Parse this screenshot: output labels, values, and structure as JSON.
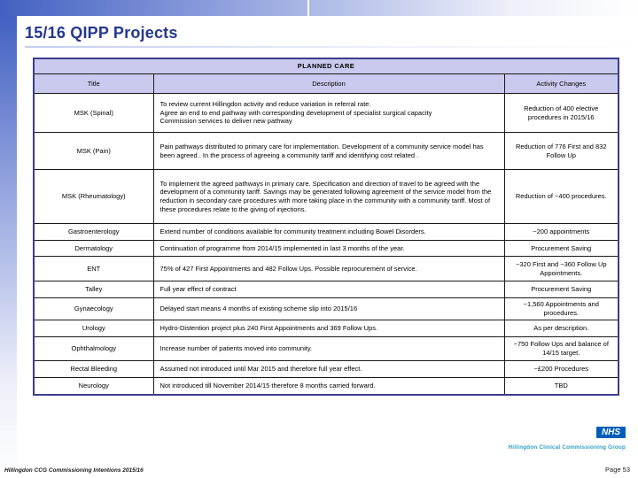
{
  "slide": {
    "title": "15/16 QIPP Projects",
    "footer_left": "Hillingdon CCG Commissioning Intentions 2015/16",
    "page_label": "Page 53",
    "nhs_logo_text": "NHS",
    "nhs_org": "Hillingdon Clinical Commissioning Group"
  },
  "colors": {
    "accent_bar_blue": "#4361c2",
    "title_navy": "#24388e",
    "table_header_lavender": "#c9caee",
    "table_outer_border": "#3c3c8c",
    "nhs_blue": "#005eb8",
    "nhs_org_teal": "#2f9ec4"
  },
  "table": {
    "section_header": "PLANNED CARE",
    "columns": [
      "Title",
      "Description",
      "Activity Changes"
    ],
    "rows": [
      {
        "title": "MSK (Spinal)",
        "description": "To review current Hillingdon activity and reduce variation in referral rate.\nAgree an end to end pathway with corresponding  development of specialist surgical capacity\nCommission services to deliver new pathway",
        "activity": "Reduction of 400 elective procedures  in 2015/16"
      },
      {
        "title": "MSK (Pain)",
        "description": "Pain pathways distributed to primary care for implementation. Development of a community service model has been agreed . In the process of agreeing a community tariff and identifying cost related .",
        "activity": "Reduction of 776 First and 832 Follow Up"
      },
      {
        "title": "MSK (Rheumatology)",
        "description": "To implement the agreed pathways in primary care. Specification and direction of travel to be agreed with the development of a community tariff. Savings may be generated following agreement of the service model from the reduction in secondary care procedures with more taking place in the community with a community tariff. Most of these procedures relate to the giving of injections.",
        "activity": "Reduction of ~400 procedures."
      },
      {
        "title": "Gastroenterology",
        "description": "Extend number of conditions available for community treatment including Bowel Disorders.",
        "activity": "~200 appointments"
      },
      {
        "title": "Dermatology",
        "description": "Continuation of programme from 2014/15 implemented in last 3 months of the year.",
        "activity": "Procurement Saving"
      },
      {
        "title": "ENT",
        "description": "75% of 427 First Appointments and  482 Follow Ups. Possible reprocurement of service.",
        "activity": "~320 First and  ~360 Follow Up Appointments."
      },
      {
        "title": "Talley",
        "description": "Full year effect of contract",
        "activity": "Procurement Saving"
      },
      {
        "title": "Gynaecology",
        "description": "Delayed start means 4 months of existing scheme slip into 2015/16",
        "activity": "~1,560 Appointments and procedures."
      },
      {
        "title": "Urology",
        "description": "Hydro-Distention project plus 240 First Appointments and 369 Follow Ups.",
        "activity": "As per description."
      },
      {
        "title": "Ophthalmology",
        "description": "Increase number of patients moved into community.",
        "activity": "~750 Follow Ups and balance of 14/15 target."
      },
      {
        "title": "Rectal Bleeding",
        "description": "Assumed not introduced until Mar 2015 and therefore full year effect.",
        "activity": "~£200 Procedures"
      },
      {
        "title": "Neurology",
        "description": "Not introduced till November 2014/15 therefore 8 months carried forward.",
        "activity": "TBD"
      }
    ]
  }
}
